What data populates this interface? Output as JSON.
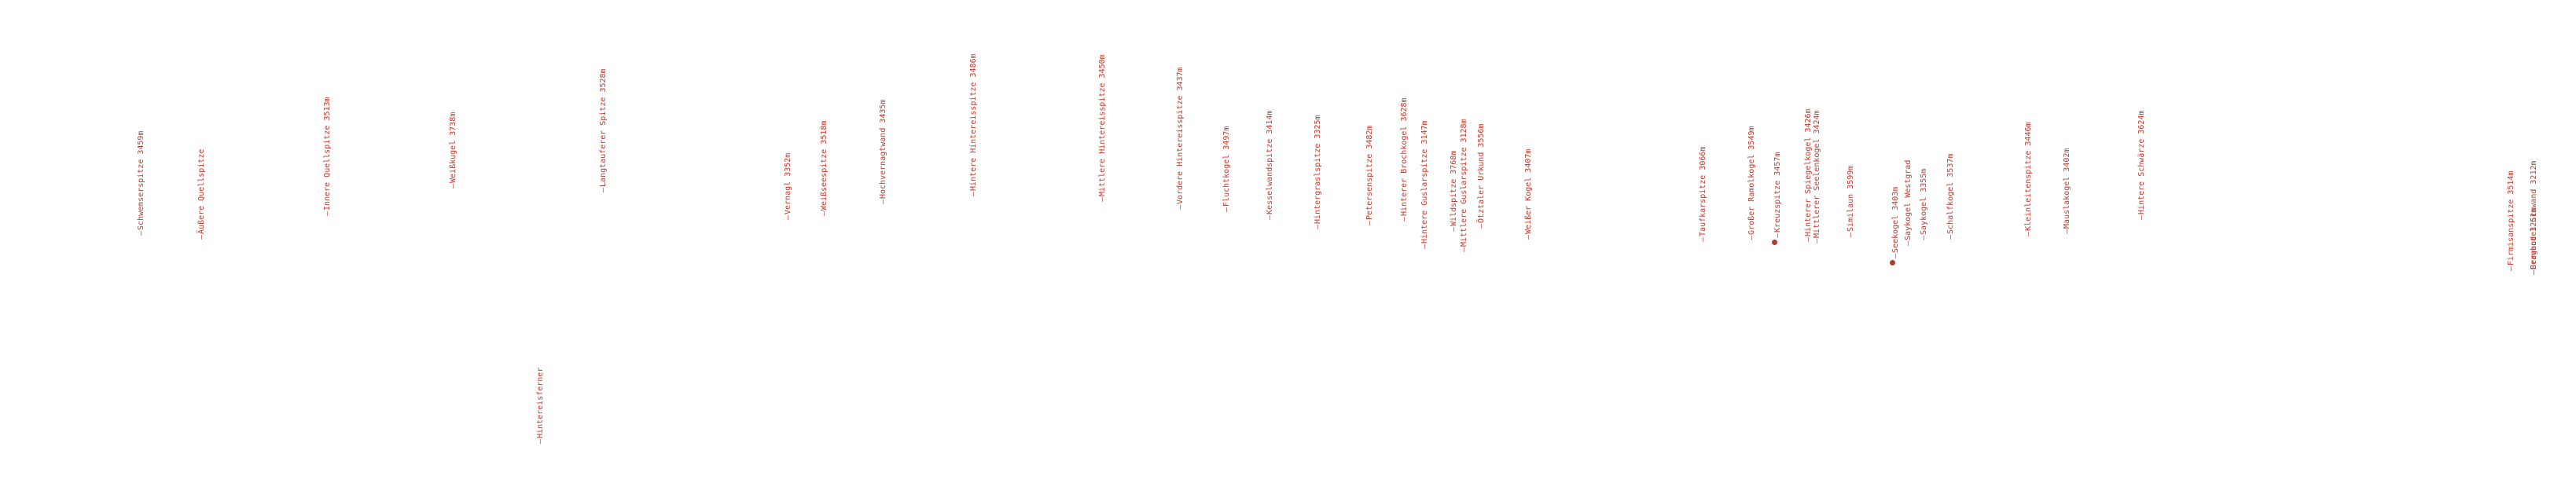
{
  "label_color": "#c0392b",
  "marker_color": "#b03a2e",
  "peaks": [
    {
      "name": "Schwemserspitze 3459m"
    },
    {
      "name": "Äußere Quellspitze"
    },
    {
      "name": "Innere Quellspitze 3513m"
    },
    {
      "name": "Weißkugel 3738m"
    },
    {
      "name": "Hintereisferner"
    },
    {
      "name": "Langtauferer Spitze 3528m"
    },
    {
      "name": "Vernagl 3352m"
    },
    {
      "name": "Weißseespitze 3518m"
    },
    {
      "name": "Hochvernagtwand 3435m"
    },
    {
      "name": "Hintere Hintereisspitze 3486m"
    },
    {
      "name": "Mittlere Hintereisspitze 3450m"
    },
    {
      "name": "Vordere Hintereisspitze 3437m"
    },
    {
      "name": "Fluchtkogel 3497m"
    },
    {
      "name": "Kesselwandspitze 3414m"
    },
    {
      "name": "Hintergraslspitze 3325m"
    },
    {
      "name": "Petersenspitze 3482m"
    },
    {
      "name": "Hinterer Brochkogel 3628m"
    },
    {
      "name": "Hintere Guslarspitze 3147m"
    },
    {
      "name": "Wildspitze 3768m"
    },
    {
      "name": "Mittlere Guslarspitze 3128m"
    },
    {
      "name": "Ötztaler Urkund 3556m"
    },
    {
      "name": "Weißer Kogel 3407m"
    },
    {
      "name": "Taufkarspitze 3066m"
    },
    {
      "name": "Großer Ramolkogel 3549m"
    },
    {
      "name": "Kreuzspitze 3457m"
    },
    {
      "name": "Hinterer Spiegelkogel 3426m"
    },
    {
      "name": "Mittlerer Seelenkogel 3424m"
    },
    {
      "name": "Similaun 3599m"
    },
    {
      "name": "Seekogel 3403m"
    },
    {
      "name": "Saykogel Westgrad"
    },
    {
      "name": "Saykogel 3355m"
    },
    {
      "name": "Schalfkogel 3537m"
    },
    {
      "name": "Kleinleitenspitze 3446m"
    },
    {
      "name": "Mauslakogel 3402m"
    },
    {
      "name": "Hintere Schwärze 3624m"
    },
    {
      "name": "Firmisanspitze 3514m"
    },
    {
      "name": "Grawand 3251m"
    },
    {
      "name": "Berghotel Grawand 3212m"
    }
  ]
}
